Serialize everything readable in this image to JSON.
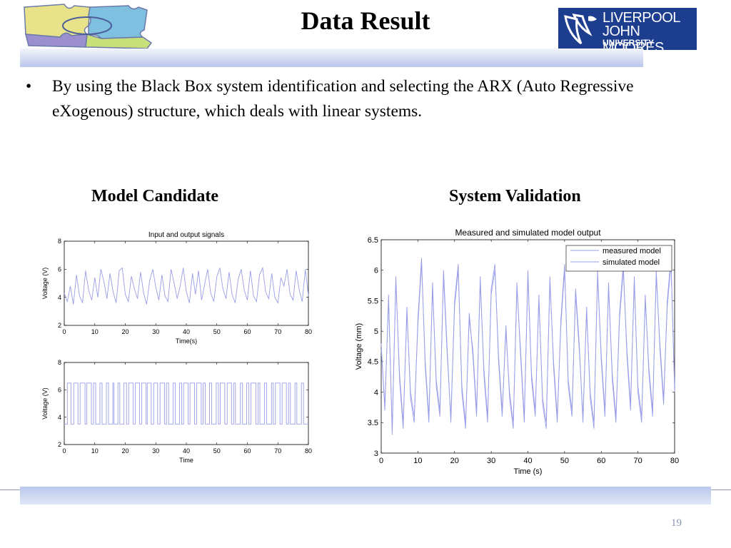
{
  "slide": {
    "title": "Data Result",
    "bullet_marker": "•",
    "bullet_text": "By using the Black Box system identification and selecting the ARX (Auto Regressive eXogenous)  structure, which deals with linear systems.",
    "left_caption": "Model Candidate",
    "right_caption": "System Validation",
    "page_number": "19"
  },
  "logos": {
    "ljmu": {
      "line1": "LIVERPOOL",
      "line2": "JOHN MOORES",
      "line3": "UNIVERSITY"
    },
    "puzzle_colors": [
      "#e8e38a",
      "#7fbfe0",
      "#9b8fd0",
      "#c9e07a"
    ]
  },
  "colors": {
    "signal_line": "#9a9ee8",
    "axis": "#000000",
    "band": "#b9c7ea"
  },
  "chart_data": [
    {
      "type": "line",
      "title": "Input and output signals",
      "xlabel": "Time(s)",
      "ylabel": "Voltage (V)",
      "xlim": [
        0,
        80
      ],
      "ylim": [
        2,
        8
      ],
      "xticks": [
        0,
        10,
        20,
        30,
        40,
        50,
        60,
        70,
        80
      ],
      "yticks": [
        2,
        4,
        6,
        8
      ],
      "x": [
        0,
        1,
        2,
        3,
        4,
        5,
        6,
        7,
        8,
        9,
        10,
        11,
        12,
        13,
        14,
        15,
        16,
        17,
        18,
        19,
        20,
        21,
        22,
        23,
        24,
        25,
        26,
        27,
        28,
        29,
        30,
        31,
        32,
        33,
        34,
        35,
        36,
        37,
        38,
        39,
        40,
        41,
        42,
        43,
        44,
        45,
        46,
        47,
        48,
        49,
        50,
        51,
        52,
        53,
        54,
        55,
        56,
        57,
        58,
        59,
        60,
        61,
        62,
        63,
        64,
        65,
        66,
        67,
        68,
        69,
        70,
        71,
        72,
        73,
        74,
        75,
        76,
        77,
        78,
        79,
        80
      ],
      "series": [
        {
          "values": [
            4.3,
            3.7,
            4.8,
            3.5,
            5.6,
            4.1,
            3.6,
            5.9,
            4.5,
            3.8,
            5.4,
            4.0,
            6.0,
            5.1,
            3.9,
            5.7,
            4.4,
            3.6,
            5.9,
            6.1,
            4.2,
            3.7,
            5.5,
            4.6,
            3.9,
            5.8,
            4.3,
            3.5,
            5.2,
            6.0,
            4.7,
            3.8,
            5.6,
            4.1,
            3.7,
            6.0,
            5.0,
            3.9,
            4.8,
            6.1,
            4.4,
            3.6,
            5.7,
            4.2,
            5.9,
            3.8,
            4.9,
            6.0,
            4.3,
            3.7,
            5.5,
            6.1,
            4.6,
            3.9,
            5.8,
            4.2,
            3.6,
            5.3,
            6.0,
            4.5,
            3.8,
            5.9,
            4.1,
            3.7,
            5.6,
            6.1,
            4.4,
            3.9,
            5.7,
            4.0,
            3.6,
            5.4,
            4.8,
            6.0,
            4.2,
            3.8,
            5.9,
            4.5,
            3.7,
            6.0,
            4.1
          ]
        }
      ]
    },
    {
      "type": "line",
      "title": "",
      "xlabel": "Time",
      "ylabel": "Voltage (V)",
      "xlim": [
        0,
        80
      ],
      "ylim": [
        2,
        8
      ],
      "xticks": [
        0,
        10,
        20,
        30,
        40,
        50,
        60,
        70,
        80
      ],
      "yticks": [
        2,
        4,
        6,
        8
      ],
      "levels": [
        3.5,
        6.5
      ],
      "switch_times": [
        1,
        2.2,
        3.1,
        4.5,
        5.2,
        6.8,
        7.4,
        8.9,
        9.6,
        10.3,
        11.7,
        12.4,
        13.8,
        14.5,
        15.9,
        16.3,
        17.6,
        18.2,
        19.5,
        20.4,
        21.1,
        22.6,
        23.3,
        24.7,
        25.4,
        26.8,
        27.2,
        28.5,
        29.3,
        30.6,
        31.4,
        32.9,
        33.5,
        34.2,
        35.7,
        36.4,
        37.8,
        38.5,
        39.1,
        40.6,
        41.2,
        42.7,
        43.4,
        44.9,
        45.5,
        46.2,
        47.6,
        48.3,
        49.8,
        50.5,
        51.1,
        52.6,
        53.4,
        54.8,
        55.5,
        56.1,
        57.7,
        58.4,
        59.8,
        60.5,
        61.2,
        62.8,
        63.5,
        64.1,
        65.6,
        66.3,
        67.9,
        68.5,
        69.2,
        70.7,
        71.4,
        72.8,
        73.5,
        74.1,
        75.6,
        76.2,
        77.7,
        78.4
      ]
    },
    {
      "type": "line",
      "title": "Measured and simulated model output",
      "xlabel": "Time (s)",
      "ylabel": "Voltage (mm)",
      "xlim": [
        0,
        80
      ],
      "ylim": [
        3,
        6.5
      ],
      "xticks": [
        0,
        10,
        20,
        30,
        40,
        50,
        60,
        70,
        80
      ],
      "yticks": [
        3,
        3.5,
        4,
        4.5,
        5,
        5.5,
        6,
        6.5
      ],
      "legend": "top-right",
      "x": [
        0,
        1,
        2,
        3,
        4,
        5,
        6,
        7,
        8,
        9,
        10,
        11,
        12,
        13,
        14,
        15,
        16,
        17,
        18,
        19,
        20,
        21,
        22,
        23,
        24,
        25,
        26,
        27,
        28,
        29,
        30,
        31,
        32,
        33,
        34,
        35,
        36,
        37,
        38,
        39,
        40,
        41,
        42,
        43,
        44,
        45,
        46,
        47,
        48,
        49,
        50,
        51,
        52,
        53,
        54,
        55,
        56,
        57,
        58,
        59,
        60,
        61,
        62,
        63,
        64,
        65,
        66,
        67,
        68,
        69,
        70,
        71,
        72,
        73,
        74,
        75,
        76,
        77,
        78,
        79,
        80
      ],
      "series": [
        {
          "name": "measured model",
          "values": [
            4.8,
            3.7,
            5.6,
            3.3,
            5.9,
            4.2,
            3.4,
            5.4,
            3.9,
            3.5,
            5.2,
            6.2,
            4.4,
            3.5,
            5.8,
            4.1,
            3.6,
            6.0,
            4.7,
            3.5,
            5.5,
            6.1,
            4.0,
            3.4,
            5.3,
            4.6,
            3.6,
            5.9,
            4.3,
            3.5,
            5.7,
            6.1,
            4.5,
            3.6,
            5.1,
            3.9,
            3.4,
            5.8,
            4.6,
            3.5,
            6.0,
            4.2,
            3.6,
            5.6,
            3.8,
            3.4,
            5.9,
            4.4,
            3.5,
            5.2,
            6.1,
            4.1,
            3.6,
            5.7,
            4.8,
            3.5,
            5.4,
            3.9,
            3.4,
            6.0,
            4.5,
            3.6,
            5.8,
            4.2,
            3.5,
            5.3,
            6.1,
            4.6,
            3.7,
            5.9,
            4.0,
            3.5,
            5.6,
            4.3,
            3.6,
            6.0,
            4.7,
            3.8,
            5.5,
            6.2,
            4.0
          ]
        },
        {
          "name": "simulated model",
          "values": [
            4.7,
            3.8,
            5.5,
            3.4,
            5.8,
            4.3,
            3.5,
            5.3,
            4.0,
            3.6,
            5.1,
            6.1,
            4.5,
            3.6,
            5.7,
            4.2,
            3.7,
            5.9,
            4.6,
            3.6,
            5.4,
            6.0,
            4.1,
            3.5,
            5.2,
            4.7,
            3.7,
            5.8,
            4.4,
            3.6,
            5.6,
            6.0,
            4.6,
            3.7,
            5.0,
            4.0,
            3.5,
            5.7,
            4.7,
            3.6,
            5.9,
            4.3,
            3.7,
            5.5,
            3.9,
            3.5,
            5.8,
            4.5,
            3.6,
            5.1,
            6.0,
            4.2,
            3.7,
            5.6,
            4.7,
            3.6,
            5.3,
            4.0,
            3.5,
            5.9,
            4.6,
            3.7,
            5.7,
            4.3,
            3.6,
            5.2,
            6.0,
            4.7,
            3.8,
            5.8,
            4.1,
            3.6,
            5.5,
            4.4,
            3.7,
            5.9,
            4.8,
            3.9,
            5.4,
            6.1,
            4.1
          ]
        }
      ]
    }
  ]
}
